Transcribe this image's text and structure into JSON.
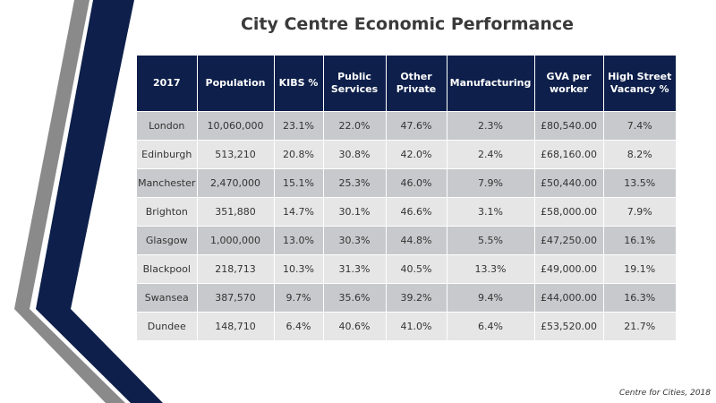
{
  "slide": {
    "title": "City Centre Economic Performance",
    "source": "Centre for Cities, 2018"
  },
  "colors": {
    "header_bg": "#0d1f4a",
    "row_dark": "#c8c9cc",
    "row_light": "#e6e6e7",
    "accent_navy": "#0d1f4a",
    "accent_gray": "#8a8a8a"
  },
  "table": {
    "headers": [
      "2017",
      "Population",
      "KIBS %",
      "Public Services",
      "Other Private",
      "Manufacturing",
      "GVA per worker",
      "High Street Vacancy %"
    ],
    "rows": [
      [
        "London",
        "10,060,000",
        "23.1%",
        "22.0%",
        "47.6%",
        "2.3%",
        "£80,540.00",
        "7.4%"
      ],
      [
        "Edinburgh",
        "513,210",
        "20.8%",
        "30.8%",
        "42.0%",
        "2.4%",
        "£68,160.00",
        "8.2%"
      ],
      [
        "Manchester",
        "2,470,000",
        "15.1%",
        "25.3%",
        "46.0%",
        "7.9%",
        "£50,440.00",
        "13.5%"
      ],
      [
        "Brighton",
        "351,880",
        "14.7%",
        "30.1%",
        "46.6%",
        "3.1%",
        "£58,000.00",
        "7.9%"
      ],
      [
        "Glasgow",
        "1,000,000",
        "13.0%",
        "30.3%",
        "44.8%",
        "5.5%",
        "£47,250.00",
        "16.1%"
      ],
      [
        "Blackpool",
        "218,713",
        "10.3%",
        "31.3%",
        "40.5%",
        "13.3%",
        "£49,000.00",
        "19.1%"
      ],
      [
        "Swansea",
        "387,570",
        "9.7%",
        "35.6%",
        "39.2%",
        "9.4%",
        "£44,000.00",
        "16.3%"
      ],
      [
        "Dundee",
        "148,710",
        "6.4%",
        "40.6%",
        "41.0%",
        "6.4%",
        "£53,520.00",
        "21.7%"
      ]
    ]
  }
}
